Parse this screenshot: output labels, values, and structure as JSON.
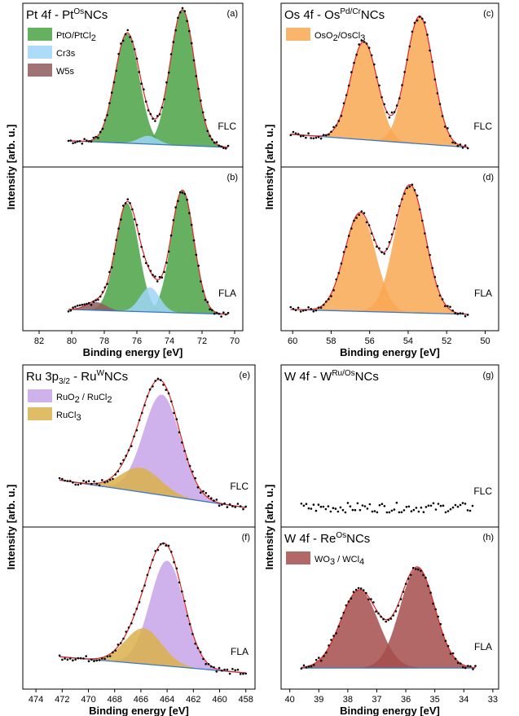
{
  "ylabel": "Intensity [arb. u.]",
  "xlabel": "Binding energy [eV]",
  "colors": {
    "green": "#4aa345",
    "lightblue": "#9fd6f7",
    "brown": "#8f5a5c",
    "orange": "#f9a852",
    "purple": "#c7a5e8",
    "gold": "#d9b04a",
    "maroon": "#a64d4d",
    "fit": "#e02424",
    "background": "#3a78c6",
    "points": "#000000"
  },
  "chart_data": [
    {
      "column": "left-top",
      "type": "area",
      "title_main": "Pt 4f - Pt",
      "title_sup": "Os",
      "title_tail": "NCs",
      "xlim": [
        83,
        69.5
      ],
      "xticks": [
        82,
        80,
        78,
        76,
        74,
        72,
        70
      ],
      "x_reversed": true,
      "ylim": [
        0,
        1
      ],
      "legend": [
        {
          "label_main": "PtO/PtCl",
          "label_sub": "2",
          "label_tail": "",
          "color": "green"
        },
        {
          "label_main": "Cr3s",
          "label_sub": "",
          "label_tail": "",
          "color": "lightblue"
        },
        {
          "label_main": "W5s",
          "label_sub": "",
          "label_tail": "",
          "color": "brown"
        }
      ],
      "panels": [
        {
          "label": "(a)",
          "tag": "FLC",
          "xrange": [
            80.2,
            70.4
          ],
          "baseline": [
            0.16,
            0.12
          ],
          "peaks": [
            {
              "center": 76.6,
              "height": 0.67,
              "width": 0.75,
              "color": "green"
            },
            {
              "center": 73.2,
              "height": 0.83,
              "width": 0.75,
              "color": "green"
            },
            {
              "center": 75.3,
              "height": 0.05,
              "width": 0.6,
              "color": "lightblue"
            }
          ]
        },
        {
          "label": "(b)",
          "tag": "FLA",
          "xrange": [
            80.2,
            70.4
          ],
          "baseline": [
            0.13,
            0.1
          ],
          "peaks": [
            {
              "center": 76.6,
              "height": 0.66,
              "width": 0.7,
              "color": "green"
            },
            {
              "center": 73.2,
              "height": 0.75,
              "width": 0.7,
              "color": "green"
            },
            {
              "center": 75.2,
              "height": 0.15,
              "width": 0.6,
              "color": "lightblue"
            },
            {
              "center": 78.5,
              "height": 0.05,
              "width": 0.6,
              "color": "brown"
            }
          ]
        }
      ]
    },
    {
      "column": "right-top",
      "type": "area",
      "title_main": "Os 4f - Os",
      "title_sup": "Pd/Cr",
      "title_tail": "NCs",
      "xlim": [
        60.6,
        49.3
      ],
      "xticks": [
        60,
        58,
        56,
        54,
        52,
        50
      ],
      "x_reversed": true,
      "ylim": [
        0,
        1
      ],
      "legend": [
        {
          "label_main": "OsO",
          "label_sub": "2",
          "label_tail": "/OsCl",
          "label_sub2": "3",
          "color": "orange"
        }
      ],
      "panels": [
        {
          "label": "(c)",
          "tag": "FLC",
          "xrange": [
            60.1,
            50.9
          ],
          "baseline": [
            0.2,
            0.12
          ],
          "peaks": [
            {
              "center": 56.3,
              "height": 0.6,
              "width": 0.7,
              "color": "orange"
            },
            {
              "center": 53.4,
              "height": 0.78,
              "width": 0.7,
              "color": "orange"
            }
          ]
        },
        {
          "label": "(d)",
          "tag": "FLA",
          "xrange": [
            60.1,
            50.9
          ],
          "baseline": [
            0.13,
            0.1
          ],
          "peaks": [
            {
              "center": 56.5,
              "height": 0.6,
              "width": 0.8,
              "color": "orange"
            },
            {
              "center": 53.9,
              "height": 0.78,
              "width": 0.8,
              "color": "orange"
            }
          ]
        }
      ]
    },
    {
      "column": "left-bottom",
      "type": "area",
      "title_main": "Ru 3p",
      "title_sub": "3/2",
      "title_mid": " - Ru",
      "title_sup": "W",
      "title_tail": "NCs",
      "xlim": [
        475,
        457.3
      ],
      "xticks": [
        474,
        472,
        470,
        468,
        466,
        464,
        462,
        460,
        458
      ],
      "x_reversed": true,
      "ylim": [
        0,
        1
      ],
      "legend": [
        {
          "label_main": "RuO",
          "label_sub": "2",
          "label_tail": " / RuCl",
          "label_sub2": "2",
          "color": "purple"
        },
        {
          "label_main": "RuCl",
          "label_sub": "3",
          "label_tail": "",
          "color": "gold"
        }
      ],
      "panels": [
        {
          "label": "(e)",
          "tag": "FLC",
          "xrange": [
            472.2,
            458.0
          ],
          "baseline": [
            0.29,
            0.12
          ],
          "peaks": [
            {
              "center": 464.4,
              "height": 0.62,
              "width": 1.4,
              "color": "purple"
            },
            {
              "center": 466.0,
              "height": 0.15,
              "width": 1.5,
              "color": "gold"
            }
          ]
        },
        {
          "label": "(f)",
          "tag": "FLA",
          "xrange": [
            472.2,
            458.0
          ],
          "baseline": [
            0.2,
            0.1
          ],
          "peaks": [
            {
              "center": 464.0,
              "height": 0.65,
              "width": 1.3,
              "color": "purple"
            },
            {
              "center": 465.8,
              "height": 0.22,
              "width": 1.4,
              "color": "gold"
            }
          ]
        }
      ]
    },
    {
      "column": "right-bottom",
      "type": "area",
      "title_main": "W 4f - W",
      "title_sup": "Ru/Os",
      "title_tail": "NCs",
      "xlim": [
        40.3,
        32.8
      ],
      "xticks": [
        40,
        39,
        38,
        37,
        36,
        35,
        34,
        33
      ],
      "x_reversed": true,
      "ylim": [
        0,
        1
      ],
      "legend": [],
      "panels": [
        {
          "label": "(g)",
          "tag": "FLC",
          "xrange": [
            39.6,
            33.7
          ],
          "baseline": [
            0.12,
            0.12
          ],
          "peaks": [],
          "noise_only": true
        },
        {
          "label": "(h)",
          "tag": "FLA",
          "xrange": [
            39.6,
            33.6
          ],
          "baseline": [
            0.13,
            0.13
          ],
          "title_main": "W 4f - Re",
          "title_sup": "Os",
          "title_tail": "NCs",
          "legend": [
            {
              "label_main": "WO",
              "label_sub": "3",
              "label_tail": " / WCl",
              "label_sub2": "4",
              "color": "maroon"
            }
          ],
          "peaks": [
            {
              "center": 37.6,
              "height": 0.48,
              "width": 0.65,
              "color": "maroon"
            },
            {
              "center": 35.6,
              "height": 0.62,
              "width": 0.6,
              "color": "maroon"
            }
          ]
        }
      ]
    }
  ]
}
